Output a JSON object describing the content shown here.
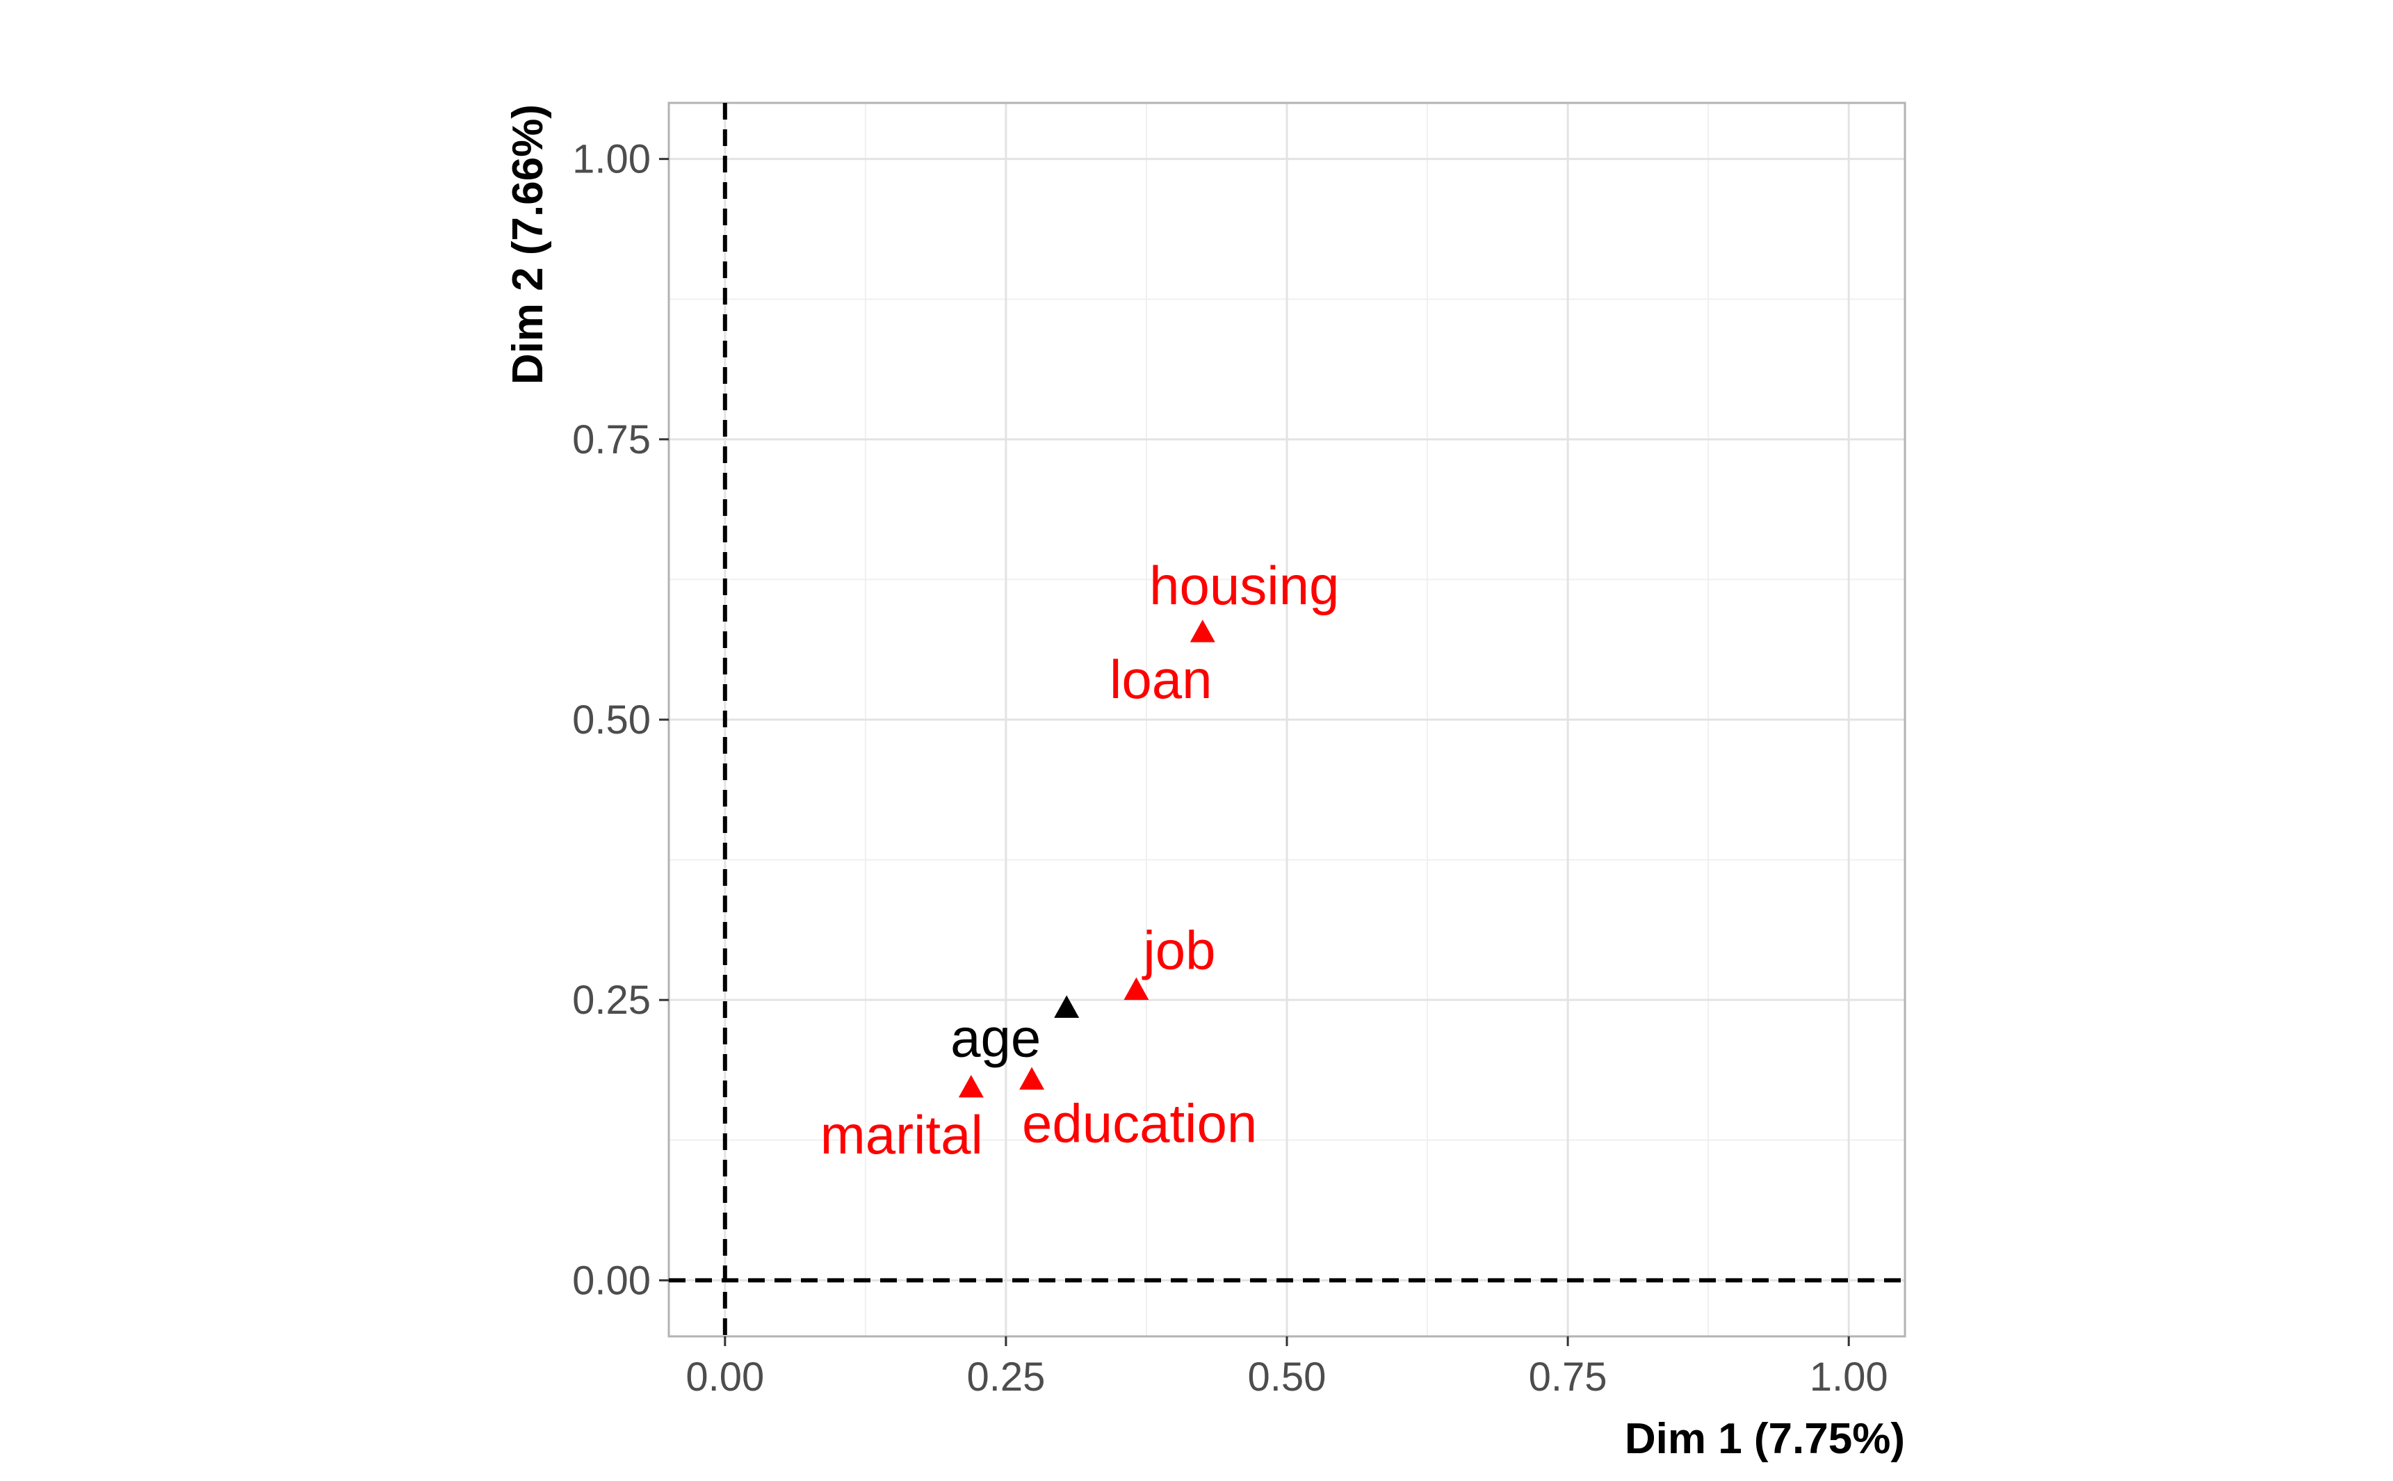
{
  "chart_data": {
    "type": "scatter",
    "title": "",
    "xlabel": "Dim 1 (7.75%)",
    "ylabel": "Dim 2 (7.66%)",
    "xlim": [
      -0.05,
      1.05
    ],
    "ylim": [
      -0.05,
      1.05
    ],
    "x_ticks": [
      0,
      0.25,
      0.5,
      0.75,
      1
    ],
    "x_tick_labels": [
      "0.00",
      "0.25",
      "0.50",
      "0.75",
      "1.00"
    ],
    "y_ticks": [
      0,
      0.25,
      0.5,
      0.75,
      1
    ],
    "y_tick_labels": [
      "0.00",
      "0.25",
      "0.50",
      "0.75",
      "1.00"
    ],
    "grid": true,
    "reference_lines": {
      "x": 0,
      "y": 0,
      "style": "dashed"
    },
    "colors": {
      "active": "#ff0000",
      "supplementary": "#000000"
    },
    "points": [
      {
        "label": "housing",
        "x": 0.425,
        "y": 0.578,
        "color": "#ff0000"
      },
      {
        "label": "loan",
        "x": 0.425,
        "y": 0.578,
        "color": "#ff0000"
      },
      {
        "label": "job",
        "x": 0.366,
        "y": 0.259,
        "color": "#ff0000"
      },
      {
        "label": "age",
        "x": 0.304,
        "y": 0.243,
        "color": "#000000"
      },
      {
        "label": "education",
        "x": 0.273,
        "y": 0.179,
        "color": "#ff0000"
      },
      {
        "label": "marital",
        "x": 0.219,
        "y": 0.172,
        "color": "#ff0000"
      }
    ]
  }
}
